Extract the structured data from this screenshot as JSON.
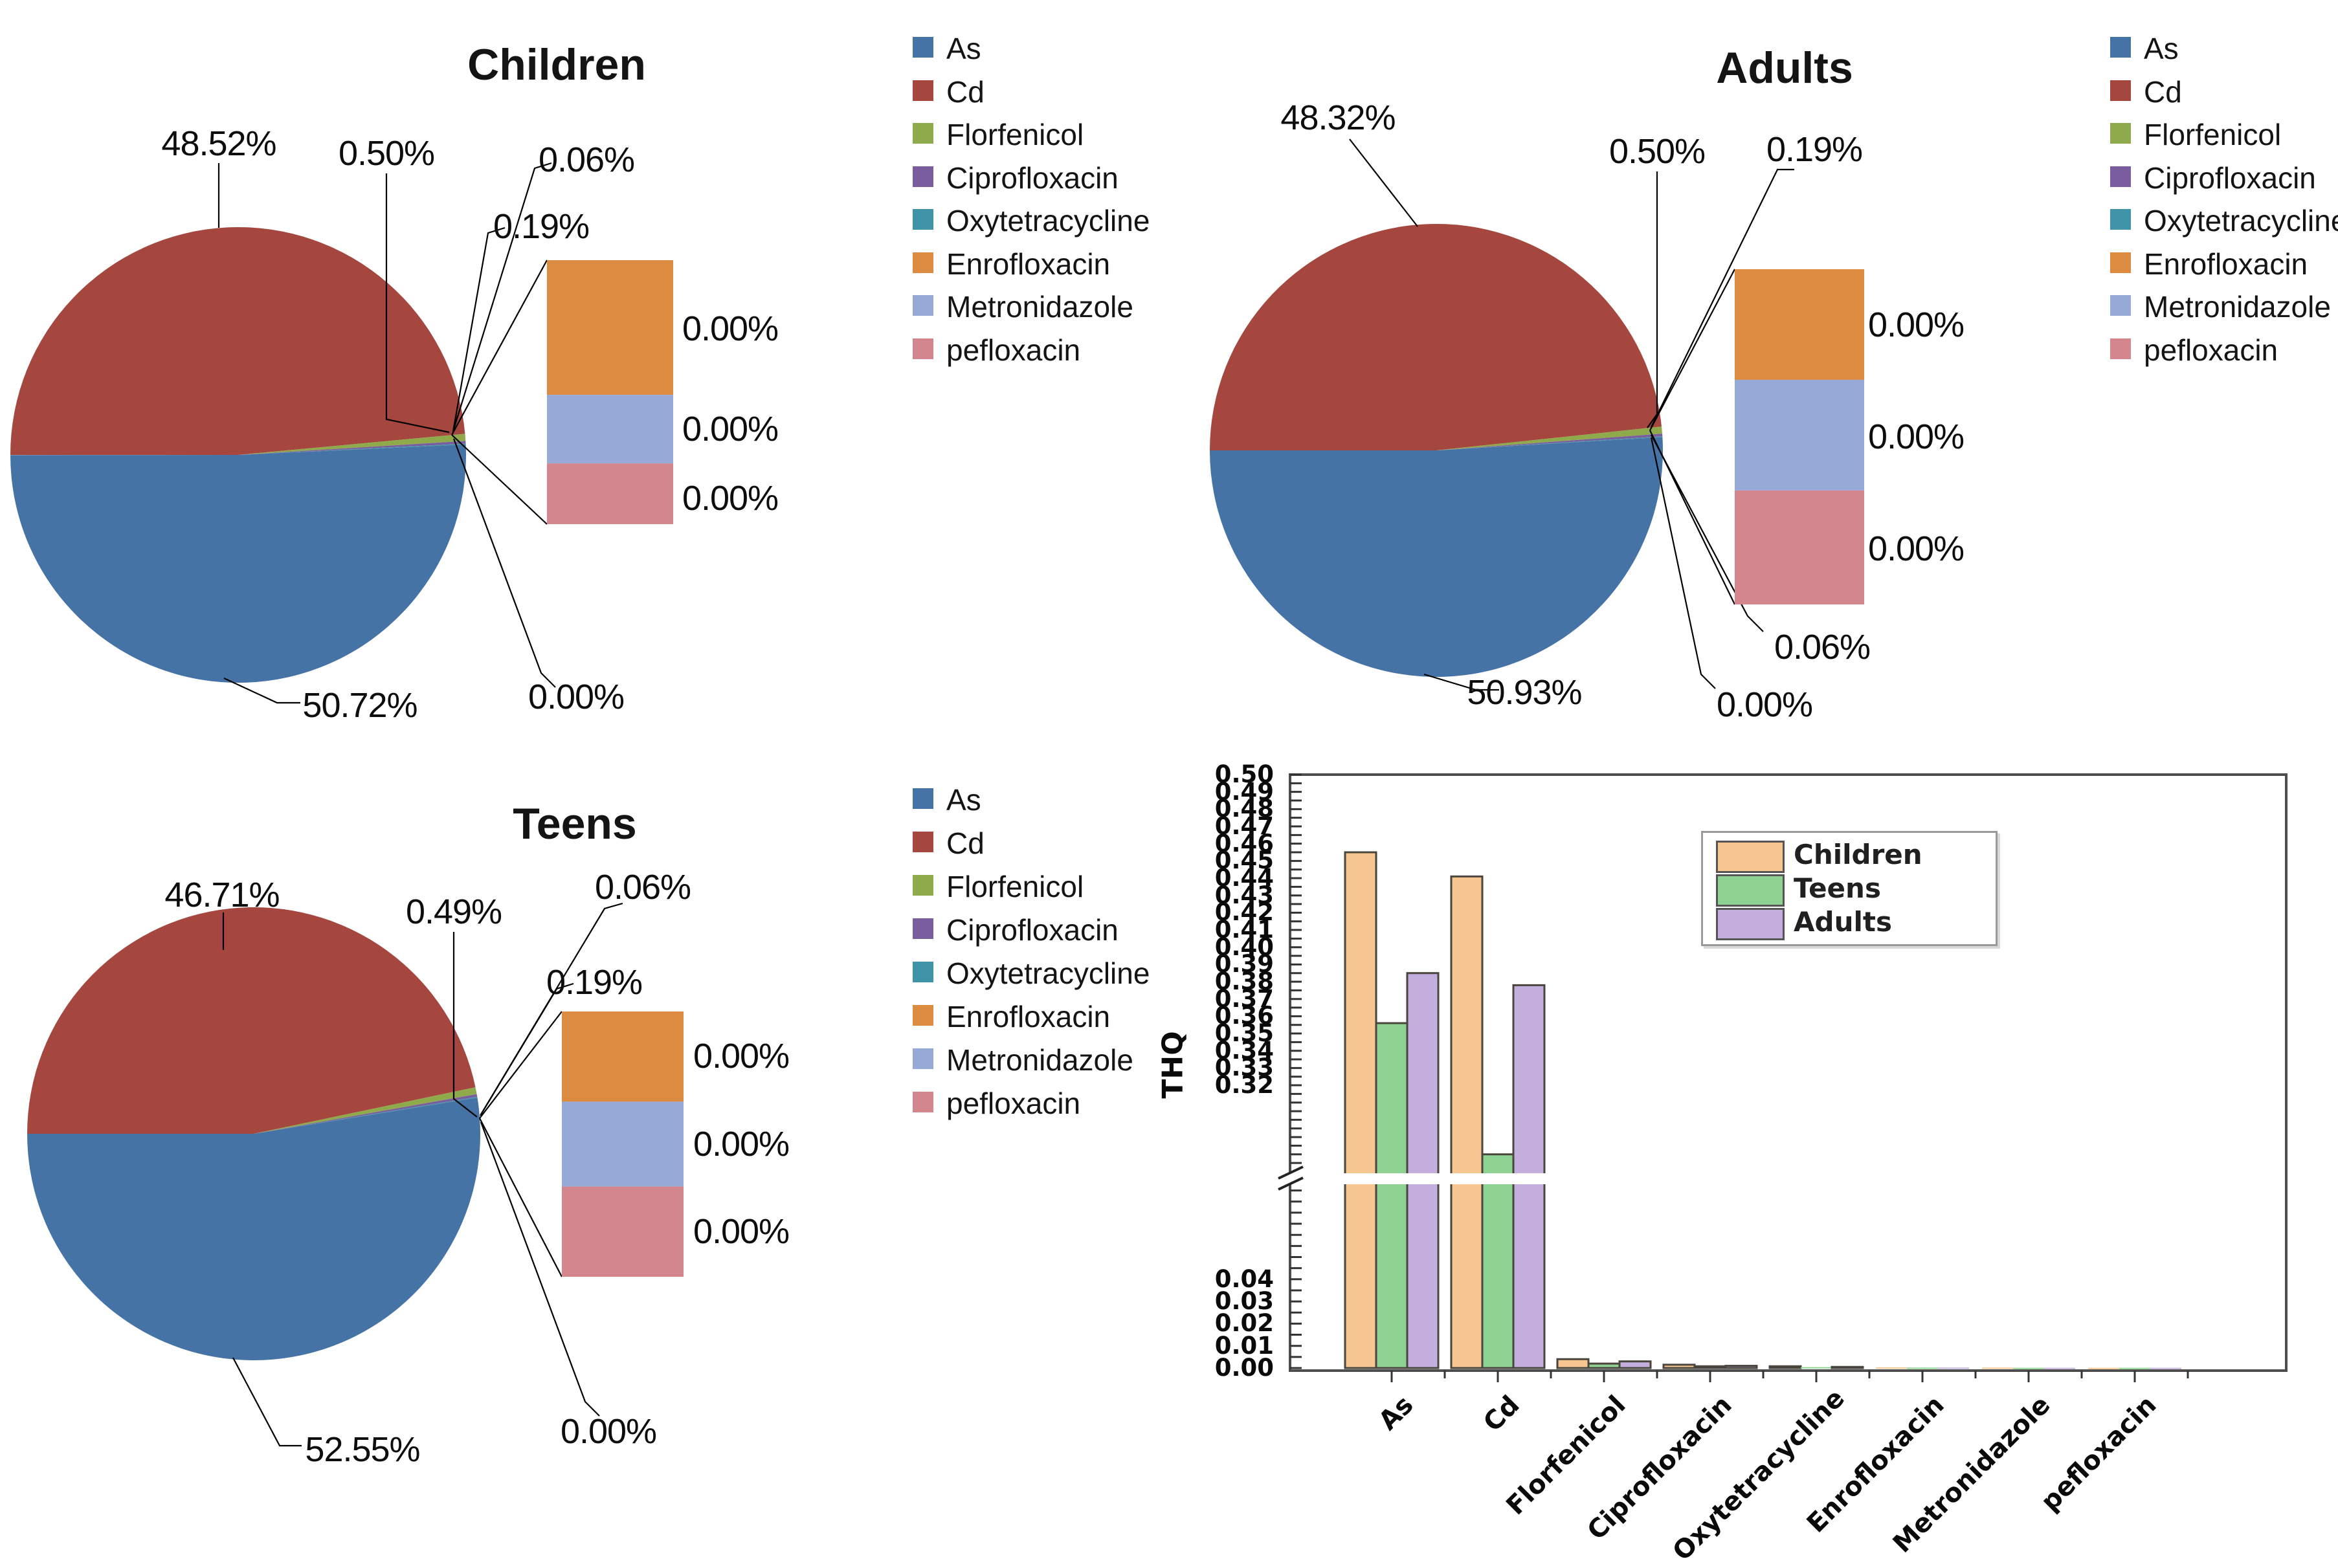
{
  "figure": {
    "panel_titles": [
      "Children",
      "Teens",
      "Adults"
    ],
    "pie_legend_items": [
      {
        "label": "As",
        "color": "#4673A5"
      },
      {
        "label": "Cd",
        "color": "#A5463F"
      },
      {
        "label": "Florfenicol",
        "color": "#8FAA4A"
      },
      {
        "label": "Ciprofloxacin",
        "color": "#7A5D9E"
      },
      {
        "label": "Oxytetracycline",
        "color": "#3F95A7"
      },
      {
        "label": "Enrofloxacin",
        "color": "#DD8B41"
      },
      {
        "label": "Metronidazole",
        "color": "#97A9D6"
      },
      {
        "label": "pefloxacin",
        "color": "#D3868D"
      }
    ]
  },
  "chart_data": [
    {
      "type": "pie",
      "title": "Children",
      "categories": [
        "As",
        "Cd",
        "Florfenicol",
        "Ciprofloxacin",
        "Oxytetracycline",
        "Enrofloxacin",
        "Metronidazole",
        "pefloxacin"
      ],
      "values": [
        50.72,
        48.52,
        0.5,
        0.19,
        0.06,
        0.0,
        0.0,
        0.0
      ],
      "slice_labels": {
        "as": "50.72%",
        "cd": "48.52%",
        "florfenicol": "0.50%",
        "ciprofloxacin": "0.19%",
        "oxytetracycline": "0.06%",
        "other": "0.00%",
        "bar": [
          "0.00%",
          "0.00%",
          "0.00%"
        ]
      },
      "bar_of_pie": {
        "segments": [
          "Enrofloxacin",
          "Metronidazole",
          "pefloxacin"
        ],
        "fractions": [
          0.51,
          0.26,
          0.23
        ]
      }
    },
    {
      "type": "pie",
      "title": "Teens",
      "categories": [
        "As",
        "Cd",
        "Florfenicol",
        "Ciprofloxacin",
        "Oxytetracycline",
        "Enrofloxacin",
        "Metronidazole",
        "pefloxacin"
      ],
      "values": [
        52.55,
        46.71,
        0.49,
        0.19,
        0.06,
        0.0,
        0.0,
        0.0
      ],
      "slice_labels": {
        "as": "52.55%",
        "cd": "46.71%",
        "florfenicol": "0.49%",
        "ciprofloxacin": "0.19%",
        "oxytetracycline": "0.06%",
        "other": "0.00%",
        "bar": [
          "0.00%",
          "0.00%",
          "0.00%"
        ]
      },
      "bar_of_pie": {
        "segments": [
          "Enrofloxacin",
          "Metronidazole",
          "pefloxacin"
        ],
        "fractions": [
          0.34,
          0.32,
          0.34
        ]
      }
    },
    {
      "type": "pie",
      "title": "Adults",
      "categories": [
        "As",
        "Cd",
        "Florfenicol",
        "Ciprofloxacin",
        "Oxytetracycline",
        "Enrofloxacin",
        "Metronidazole",
        "pefloxacin"
      ],
      "values": [
        50.93,
        48.32,
        0.5,
        0.19,
        0.06,
        0.0,
        0.0,
        0.0
      ],
      "slice_labels": {
        "as": "50.93%",
        "cd": "48.32%",
        "florfenicol": "0.50%",
        "ciprofloxacin": "0.19%",
        "oxytetracycline": "0.06%",
        "other": "0.00%",
        "bar": [
          "0.00%",
          "0.00%",
          "0.00%"
        ]
      },
      "bar_of_pie": {
        "segments": [
          "Enrofloxacin",
          "Metronidazole",
          "pefloxacin"
        ],
        "fractions": [
          0.33,
          0.33,
          0.34
        ]
      }
    },
    {
      "type": "bar",
      "title": "",
      "xlabel": "",
      "ylabel": "THQ",
      "categories": [
        "As",
        "Cd",
        "Florfenicol",
        "Ciprofloxacin",
        "Oxytetracycline",
        "Enrofloxacin",
        "Metronidazole",
        "pefloxacin"
      ],
      "series": [
        {
          "name": "Children",
          "color": "#F8C691",
          "values": [
            0.455,
            0.441,
            0.004,
            0.0015,
            0.0008,
            0.0003,
            0.0002,
            0.0001
          ]
        },
        {
          "name": "Teens",
          "color": "#8FD392",
          "values": [
            0.356,
            0.28,
            0.002,
            0.0008,
            0.0004,
            0.0002,
            0.0001,
            0.0001
          ]
        },
        {
          "name": "Adults",
          "color": "#C4AEDD",
          "values": [
            0.385,
            0.378,
            0.003,
            0.001,
            0.0005,
            0.0002,
            0.0001,
            0.0001
          ]
        }
      ],
      "y_axis": {
        "axis_break": true,
        "upper_range": [
          0.269,
          0.5
        ],
        "lower_range": [
          0.0,
          0.083
        ],
        "upper_tick_labels": [
          "0.50",
          "0.49",
          "0.48",
          "0.47",
          "0.46",
          "0.45",
          "0.44",
          "0.43",
          "0.42",
          "0.41",
          "0.40",
          "0.39",
          "0.38",
          "0.37",
          "0.36",
          "0.35",
          "0.34",
          "0.33",
          "0.32"
        ],
        "lower_tick_labels": [
          "0.04",
          "0.03",
          "0.02",
          "0.01",
          "0.00"
        ]
      },
      "legend": {
        "entries": [
          "Children",
          "Teens",
          "Adults"
        ],
        "position": "upper center"
      },
      "grid": false
    }
  ]
}
